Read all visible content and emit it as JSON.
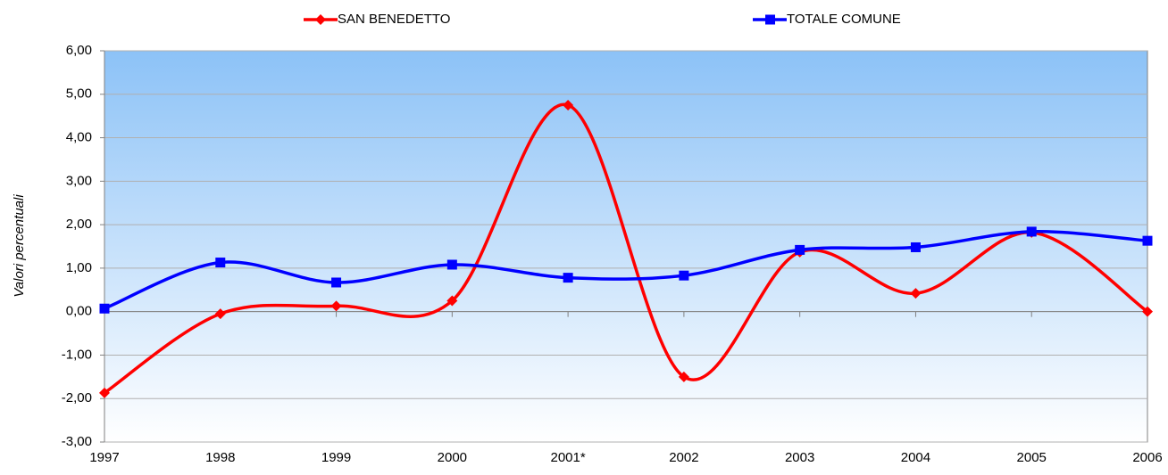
{
  "chart_data": {
    "type": "line",
    "y_label": "Valori percentuali",
    "categories": [
      "1997",
      "1998",
      "1999",
      "2000",
      "2001*",
      "2002",
      "2003",
      "2004",
      "2005",
      "2006"
    ],
    "series": [
      {
        "name": "SAN BENEDETTO",
        "color": "#ff0000",
        "marker": "diamond",
        "values": [
          -1.87,
          -0.05,
          0.13,
          0.25,
          4.75,
          -1.5,
          1.37,
          0.42,
          1.82,
          0.0
        ]
      },
      {
        "name": "TOTALE COMUNE",
        "color": "#0000ff",
        "marker": "square",
        "values": [
          0.07,
          1.13,
          0.67,
          1.08,
          0.78,
          0.83,
          1.42,
          1.48,
          1.84,
          1.63
        ]
      }
    ],
    "ylim": [
      -3,
      6
    ],
    "yticks": [
      {
        "value": -3,
        "label": "-3,00"
      },
      {
        "value": -2,
        "label": "-2,00"
      },
      {
        "value": -1,
        "label": "-1,00"
      },
      {
        "value": 0,
        "label": "0,00"
      },
      {
        "value": 1,
        "label": "1,00"
      },
      {
        "value": 2,
        "label": "2,00"
      },
      {
        "value": 3,
        "label": "3,00"
      },
      {
        "value": 4,
        "label": "4,00"
      },
      {
        "value": 5,
        "label": "5,00"
      },
      {
        "value": 6,
        "label": "6,00"
      }
    ],
    "grid": true,
    "smooth": true,
    "legend": "top"
  }
}
